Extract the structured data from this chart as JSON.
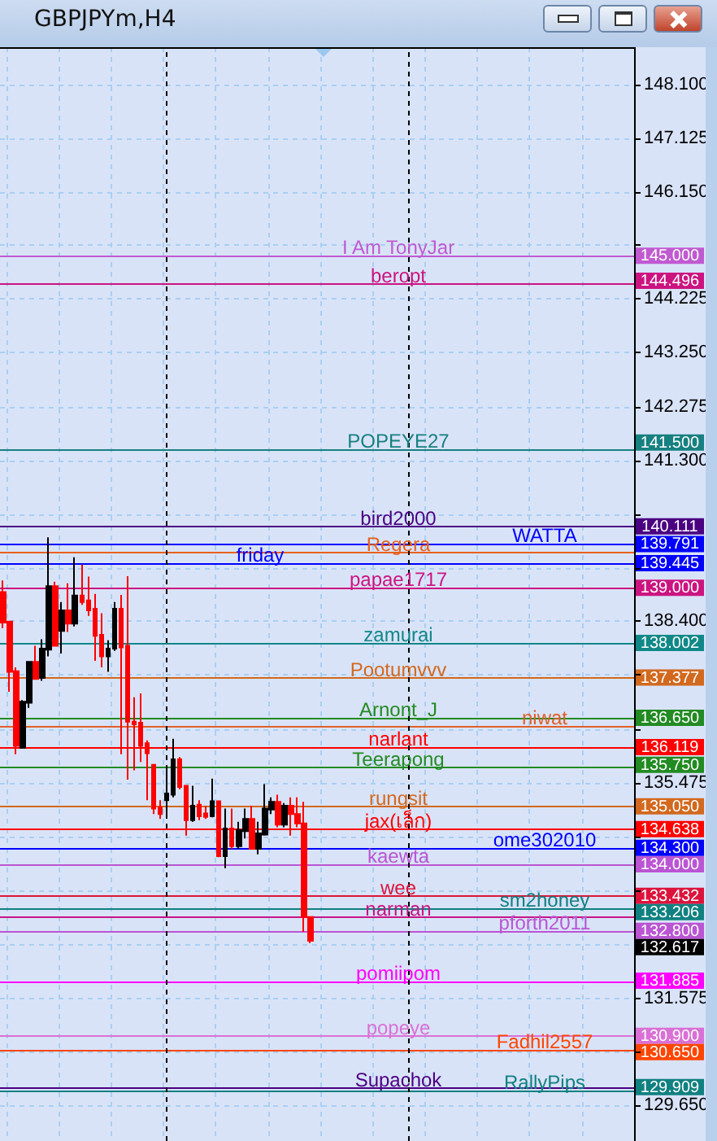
{
  "chart_data": {
    "type": "candlestick",
    "title": "GBPJPYm,H4",
    "categories": [
      null,
      null,
      null,
      null,
      null,
      null,
      null,
      null,
      null,
      null,
      null,
      null,
      null,
      null,
      null,
      null,
      null,
      null,
      null,
      null,
      null,
      null,
      null,
      null,
      null,
      null,
      null,
      null,
      null,
      null,
      null,
      null,
      null,
      null,
      null,
      null,
      null,
      null,
      null,
      null,
      null,
      null,
      null,
      null,
      null,
      null,
      null,
      null,
      null,
      null,
      null,
      null,
      null,
      null,
      null,
      null,
      null,
      null,
      null,
      null,
      null,
      null,
      null,
      null,
      null,
      null,
      null,
      null,
      null,
      null,
      null,
      null,
      null,
      null,
      null,
      null,
      null,
      null,
      null,
      null,
      null,
      null,
      null,
      null,
      null,
      null,
      null,
      null,
      null,
      null,
      null,
      null,
      null,
      null,
      null,
      null,
      null
    ],
    "ohlc": [
      [
        138.92,
        139.13,
        138.27,
        138.37
      ],
      [
        138.39,
        138.39,
        137.12,
        137.48
      ],
      [
        137.49,
        137.56,
        135.99,
        136.14
      ],
      [
        136.11,
        136.97,
        136.09,
        136.94
      ],
      [
        136.92,
        137.66,
        136.83,
        137.66
      ],
      [
        137.66,
        137.95,
        137.35,
        137.35
      ],
      [
        137.37,
        138.07,
        137.32,
        137.9
      ],
      [
        137.88,
        139.91,
        137.76,
        139.03
      ],
      [
        139.03,
        139.11,
        137.95,
        137.95
      ],
      [
        138.22,
        138.74,
        137.81,
        138.59
      ],
      [
        138.59,
        139.08,
        138.2,
        138.35
      ],
      [
        138.35,
        139.55,
        138.3,
        138.86
      ],
      [
        138.86,
        139.42,
        138.69,
        138.74
      ],
      [
        138.77,
        139.2,
        138.49,
        138.59
      ],
      [
        138.62,
        138.89,
        137.68,
        138.13
      ],
      [
        138.15,
        138.54,
        137.56,
        137.76
      ],
      [
        137.76,
        138.05,
        137.48,
        137.9
      ],
      [
        137.9,
        138.74,
        137.86,
        138.62
      ],
      [
        138.62,
        138.87,
        135.99,
        137.92
      ],
      [
        137.95,
        139.21,
        135.53,
        136.58
      ],
      [
        136.58,
        137.02,
        135.7,
        136.53
      ],
      [
        136.56,
        137.09,
        135.85,
        136.14
      ],
      [
        136.19,
        136.24,
        135.16,
        136.01
      ],
      [
        135.8,
        135.8,
        134.91,
        135.01
      ],
      [
        135.03,
        135.16,
        134.82,
        134.91
      ],
      [
        135.16,
        135.75,
        134.91,
        135.28
      ],
      [
        135.26,
        136.27,
        135.21,
        135.9
      ],
      [
        135.9,
        135.94,
        135.36,
        135.4
      ],
      [
        135.42,
        135.42,
        134.52,
        134.8
      ],
      [
        134.8,
        135.42,
        134.77,
        135.06
      ],
      [
        135.08,
        135.16,
        134.8,
        134.87
      ],
      [
        134.92,
        135.06,
        134.82,
        134.86
      ],
      [
        134.87,
        135.55,
        134.85,
        135.14
      ],
      [
        135.14,
        135.14,
        134.13,
        134.15
      ],
      [
        134.15,
        135.01,
        133.93,
        134.65
      ],
      [
        134.65,
        135.01,
        134.28,
        134.33
      ],
      [
        134.33,
        134.77,
        134.28,
        134.62
      ],
      [
        134.6,
        135.01,
        134.47,
        134.82
      ],
      [
        134.82,
        135.06,
        134.28,
        134.28
      ],
      [
        134.28,
        134.77,
        134.18,
        134.56
      ],
      [
        134.54,
        135.45,
        134.52,
        135.01
      ],
      [
        134.99,
        135.21,
        134.91,
        135.13
      ],
      [
        135.13,
        135.26,
        134.67,
        134.72
      ],
      [
        134.72,
        135.11,
        134.67,
        135.06
      ],
      [
        135.06,
        135.21,
        134.52,
        134.91
      ],
      [
        134.91,
        135.21,
        134.67,
        134.74
      ],
      [
        134.74,
        135.13,
        132.78,
        133.05
      ],
      [
        133.05,
        133.05,
        132.58,
        132.617
      ],
      null,
      null,
      null,
      null,
      null,
      null,
      null,
      null,
      null,
      null,
      null,
      null,
      null,
      null,
      null,
      null,
      null,
      null,
      null,
      null,
      null,
      null,
      null,
      null,
      null,
      null,
      null,
      null,
      null,
      null,
      null,
      null,
      null,
      null,
      null,
      null,
      null,
      null,
      null,
      null,
      null,
      null,
      null,
      null,
      null,
      null,
      null,
      null,
      null
    ],
    "colors": [
      "#ff0000",
      "#ff0000",
      "#ff0000",
      "#000000",
      "#000000",
      "#ff0000",
      "#000000",
      "#000000",
      "#ff0000",
      "#000000",
      "#ff0000",
      "#000000",
      "#ff0000",
      "#ff0000",
      "#ff0000",
      "#ff0000",
      "#000000",
      "#000000",
      "#ff0000",
      "#ff0000",
      "#ff0000",
      "#ff0000",
      "#ff0000",
      "#ff0000",
      "#ff0000",
      "#000000",
      "#000000",
      "#ff0000",
      "#ff0000",
      "#000000",
      "#ff0000",
      "#ff0000",
      "#000000",
      "#ff0000",
      "#000000",
      "#ff0000",
      "#000000",
      "#000000",
      "#ff0000",
      "#000000",
      "#000000",
      "#000000",
      "#ff0000",
      "#000000",
      "#ff0000",
      "#ff0000",
      "#ff0000",
      "#ff0000",
      null,
      null,
      null,
      null,
      null,
      null,
      null,
      null,
      null,
      null,
      null,
      null,
      null,
      null,
      null,
      null,
      null,
      null,
      null,
      null,
      null,
      null,
      null,
      null,
      null,
      null,
      null,
      null,
      null,
      null,
      null,
      null,
      null,
      null,
      null,
      null,
      null,
      null,
      null,
      null,
      null,
      null,
      null,
      null,
      null,
      null,
      null,
      null,
      null
    ],
    "ylim": [
      129.0,
      148.77
    ],
    "yticks": [
      {
        "value": 148.1,
        "label": "148.100"
      },
      {
        "value": 147.125,
        "label": "147.125"
      },
      {
        "value": 146.15,
        "label": "146.150"
      },
      {
        "value": 145.2,
        "label": null
      },
      {
        "value": 144.225,
        "label": "144.225"
      },
      {
        "value": 143.25,
        "label": "143.250"
      },
      {
        "value": 142.275,
        "label": "142.275"
      },
      {
        "value": 141.3,
        "label": "141.300"
      },
      {
        "value": 140.325,
        "label": null
      },
      {
        "value": 139.35,
        "label": null
      },
      {
        "value": 138.4,
        "label": "138.400"
      },
      {
        "value": 137.425,
        "label": null
      },
      {
        "value": 136.45,
        "label": null
      },
      {
        "value": 135.475,
        "label": "135.475"
      },
      {
        "value": 134.5,
        "label": null
      },
      {
        "value": 133.525,
        "label": null
      },
      {
        "value": 132.55,
        "label": null
      },
      {
        "value": 131.575,
        "label": "131.575"
      },
      {
        "value": 130.6,
        "label": null
      },
      {
        "value": 129.65,
        "label": "129.650"
      }
    ],
    "grid": true,
    "annotations": [
      "145.000",
      "144.496",
      "141.500",
      "140.111",
      "139.791",
      "139.445",
      "139.000",
      "138.002",
      "137.377",
      "136.650",
      "136.119",
      "135.750",
      "135.050",
      "134.638",
      "134.300",
      "134.000",
      "133.432",
      "133.206",
      "132.800",
      "132.617",
      "131.885",
      "130.900",
      "130.650",
      "129.909"
    ],
    "tick_labels": "y",
    "ref_lines": [
      {
        "axis": "y",
        "value": 145.0,
        "label": "I Am TonyJar",
        "color": "#c05ad0"
      },
      {
        "axis": "y",
        "value": 144.496,
        "label": "beropt",
        "color": "#cc1480"
      },
      {
        "axis": "y",
        "value": 141.5,
        "label": "POPEYE27",
        "color": "#178080"
      },
      {
        "axis": "y",
        "value": 140.111,
        "label": "bird2000",
        "color": "#4b0082"
      },
      {
        "axis": "y",
        "value": 139.791,
        "label": "WATTA",
        "color": "#0000ff"
      },
      {
        "axis": "y",
        "value": 139.64,
        "label": "Regera",
        "color": "#e8601c"
      },
      {
        "axis": "y",
        "value": 139.445,
        "label": "friday",
        "color": "#0000ff"
      },
      {
        "axis": "y",
        "value": 139.0,
        "label": "papae1717",
        "color": "#cc1480"
      },
      {
        "axis": "y",
        "value": 138.002,
        "label": "zamurai",
        "color": "#108888"
      },
      {
        "axis": "y",
        "value": 137.377,
        "label": "Pootumvvv",
        "color": "#d2691e"
      },
      {
        "axis": "y",
        "value": 136.65,
        "label": "Arnont_J",
        "color": "#228b22"
      },
      {
        "axis": "y",
        "value": 136.5,
        "label": "niwat",
        "color": "#e0602a"
      },
      {
        "axis": "y",
        "value": 136.119,
        "label": "narlant",
        "color": "#ff0000"
      },
      {
        "axis": "y",
        "value": 135.75,
        "label": "Teerapong",
        "color": "#228b22"
      },
      {
        "axis": "y",
        "value": 135.05,
        "label": "rungsit",
        "color": "#d2691e"
      },
      {
        "axis": "y",
        "value": 134.638,
        "label": "jax(เล็ก)",
        "color": "#ff0000"
      },
      {
        "axis": "y",
        "value": 134.3,
        "label": "ome302010",
        "color": "#0000ff"
      },
      {
        "axis": "y",
        "value": 134.0,
        "label": "kaewta",
        "color": "#ba55d3"
      },
      {
        "axis": "y",
        "value": 133.432,
        "label": "wee",
        "color": "#dc143c"
      },
      {
        "axis": "y",
        "value": 133.206,
        "label": "sm2honey",
        "color": "#108080"
      },
      {
        "axis": "y",
        "value": 133.05,
        "label": "narman",
        "color": "#c71585"
      },
      {
        "axis": "y",
        "value": 132.8,
        "label": "pforth2011",
        "color": "#ba55d3"
      },
      {
        "axis": "y",
        "value": 131.885,
        "label": "pomiipom",
        "color": "#ff00ff"
      },
      {
        "axis": "y",
        "value": 130.9,
        "label": "popeye",
        "color": "#da70d6"
      },
      {
        "axis": "y",
        "value": 130.65,
        "label": "Fadhil2557",
        "color": "#ff4500"
      },
      {
        "axis": "y",
        "value": 129.96,
        "label": "Supachok",
        "color": "#4b0082"
      },
      {
        "axis": "y",
        "value": 129.909,
        "label": "RallyPips",
        "color": "#108080"
      }
    ]
  }
}
